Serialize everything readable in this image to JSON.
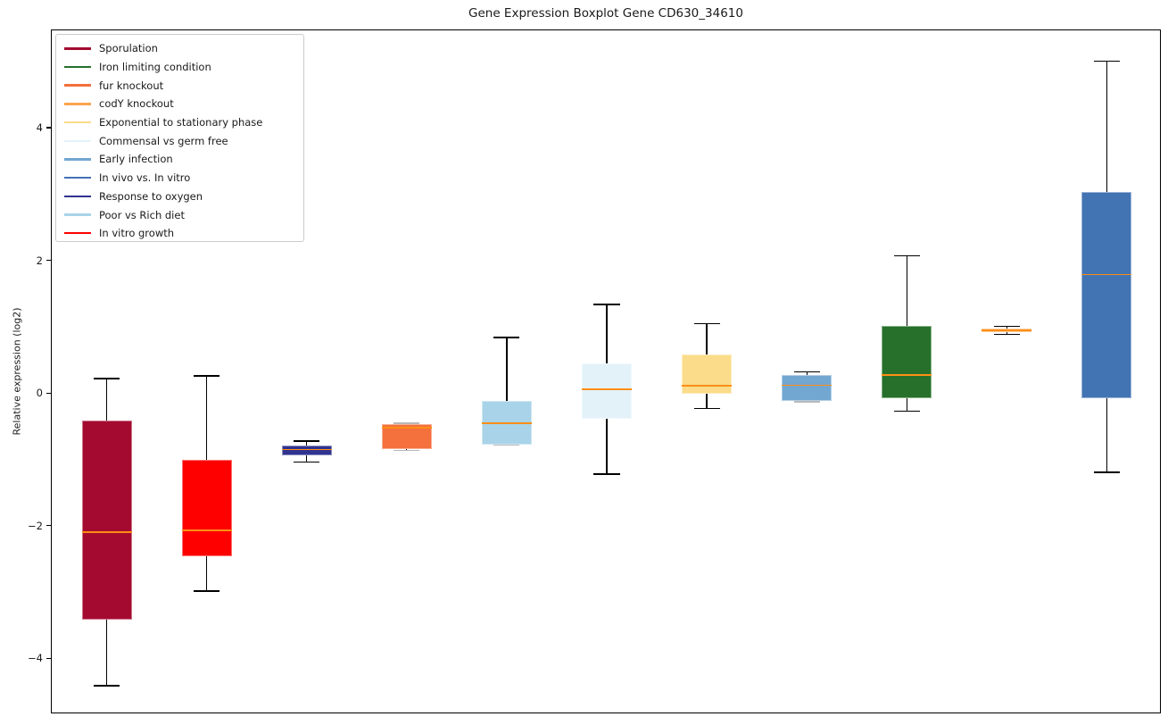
{
  "figure": {
    "title": "Gene Expression Boxplot Gene CD630_34610",
    "y_label": "Relative expression (log2)"
  },
  "chart_data": {
    "type": "boxplot",
    "title": "Gene Expression Boxplot Gene CD630_34610",
    "xlabel": "",
    "ylabel": "Relative expression (log2)",
    "ylim": [
      -4.83,
      5.48
    ],
    "xlim": [
      0.45,
      11.55
    ],
    "yticks": [
      4,
      2,
      0,
      -2,
      -4
    ],
    "ytick_labels": [
      "4",
      "2",
      "0",
      "−2",
      "−4"
    ],
    "grid": false,
    "legend_position": "upper-left",
    "median_color": "#FF8E16",
    "box_width_units": 0.5,
    "legend": [
      {
        "label": "Sporulation",
        "color": "#A40A30"
      },
      {
        "label": "Iron limiting condition",
        "color": "#26702B"
      },
      {
        "label": "fur knockout",
        "color": "#F4703C"
      },
      {
        "label": "codY knockout",
        "color": "#FCA44E"
      },
      {
        "label": "Exponential to stationary phase",
        "color": "#FBDC8A"
      },
      {
        "label": "Commensal vs germ free",
        "color": "#E3F2F9"
      },
      {
        "label": "Early infection",
        "color": "#72A7D1"
      },
      {
        "label": "In vivo vs. In vitro",
        "color": "#4273B3"
      },
      {
        "label": "Response to oxygen",
        "color": "#30338F"
      },
      {
        "label": "Poor vs Rich diet",
        "color": "#A8D3E8"
      },
      {
        "label": "In vitro growth",
        "color": "#FE0000"
      }
    ],
    "series": [
      {
        "name": "Sporulation",
        "color": "#A40A30",
        "position": 1,
        "whisker_low": -4.4,
        "q1": -3.41,
        "median": -2.08,
        "q3": -0.4,
        "whisker_high": 0.23
      },
      {
        "name": "In vitro growth",
        "color": "#FE0000",
        "position": 2,
        "whisker_low": -2.97,
        "q1": -2.45,
        "median": -2.06,
        "q3": -1.0,
        "whisker_high": 0.27
      },
      {
        "name": "Response to oxygen",
        "color": "#30338F",
        "position": 3,
        "whisker_low": -1.03,
        "q1": -0.93,
        "median": -0.84,
        "q3": -0.78,
        "whisker_high": -0.71
      },
      {
        "name": "fur knockout",
        "color": "#F4703C",
        "position": 4,
        "whisker_low": -0.85,
        "q1": -0.83,
        "median": -0.51,
        "q3": -0.46,
        "whisker_high": -0.44,
        "cap_low_gray": true,
        "cap_high_gray": true
      },
      {
        "name": "Poor vs Rich diet",
        "color": "#A8D3E8",
        "position": 5,
        "whisker_low": -0.77,
        "q1": -0.76,
        "median": -0.44,
        "q3": -0.1,
        "whisker_high": 0.85,
        "cap_low_gray": true
      },
      {
        "name": "Commensal vs germ free",
        "color": "#E3F2F9",
        "position": 6,
        "whisker_low": -1.21,
        "q1": -0.37,
        "median": 0.07,
        "q3": 0.46,
        "whisker_high": 1.35
      },
      {
        "name": "Exponential to stationary phase",
        "color": "#FBDC8A",
        "position": 7,
        "whisker_low": -0.22,
        "q1": 0.0,
        "median": 0.12,
        "q3": 0.6,
        "whisker_high": 1.06
      },
      {
        "name": "Early infection",
        "color": "#72A7D1",
        "position": 8,
        "whisker_low": -0.12,
        "q1": -0.11,
        "median": 0.13,
        "q3": 0.28,
        "whisker_high": 0.33,
        "cap_low_gray": true
      },
      {
        "name": "Iron limiting condition",
        "color": "#26702B",
        "position": 9,
        "whisker_low": -0.26,
        "q1": -0.07,
        "median": 0.28,
        "q3": 1.02,
        "whisker_high": 2.08
      },
      {
        "name": "codY knockout",
        "color": "#FCA44E",
        "position": 10,
        "whisker_low": 0.9,
        "q1": 0.93,
        "median": 0.96,
        "q3": 0.99,
        "whisker_high": 1.02
      },
      {
        "name": "In vivo vs. In vitro",
        "color": "#4273B3",
        "position": 11,
        "whisker_low": -1.18,
        "q1": -0.07,
        "median": 1.8,
        "q3": 3.05,
        "whisker_high": 5.02
      }
    ]
  }
}
